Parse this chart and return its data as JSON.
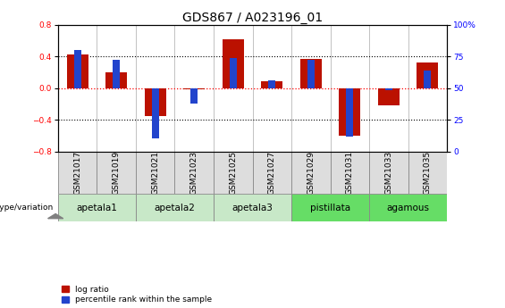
{
  "title": "GDS867 / A023196_01",
  "samples": [
    "GSM21017",
    "GSM21019",
    "GSM21021",
    "GSM21023",
    "GSM21025",
    "GSM21027",
    "GSM21029",
    "GSM21031",
    "GSM21033",
    "GSM21035"
  ],
  "log_ratio": [
    0.42,
    0.2,
    -0.35,
    -0.02,
    0.62,
    0.08,
    0.37,
    -0.6,
    -0.22,
    0.32
  ],
  "percentile_display": [
    80,
    72,
    10,
    38,
    74,
    56,
    72,
    12,
    48,
    64
  ],
  "ylim_left": [
    -0.8,
    0.8
  ],
  "ylim_right": [
    0,
    100
  ],
  "yticks_left": [
    -0.8,
    -0.4,
    0.0,
    0.4,
    0.8
  ],
  "yticks_right": [
    0,
    25,
    50,
    75,
    100
  ],
  "groups": [
    {
      "name": "apetala1",
      "indices": [
        0,
        1
      ],
      "color": "#c8e8c8"
    },
    {
      "name": "apetala2",
      "indices": [
        2,
        3
      ],
      "color": "#c8e8c8"
    },
    {
      "name": "apetala3",
      "indices": [
        4,
        5
      ],
      "color": "#c8e8c8"
    },
    {
      "name": "pistillata",
      "indices": [
        6,
        7
      ],
      "color": "#66dd66"
    },
    {
      "name": "agamous",
      "indices": [
        8,
        9
      ],
      "color": "#66dd66"
    }
  ],
  "bar_color_red": "#bb1100",
  "bar_color_blue": "#2244cc",
  "bar_width": 0.55,
  "blue_bar_width": 0.18,
  "genotype_label": "genotype/variation",
  "legend_red": "log ratio",
  "legend_blue": "percentile rank within the sample",
  "title_fontsize": 10,
  "tick_fontsize": 6.5,
  "group_fontsize": 7.5,
  "sample_cell_color": "#dddddd"
}
